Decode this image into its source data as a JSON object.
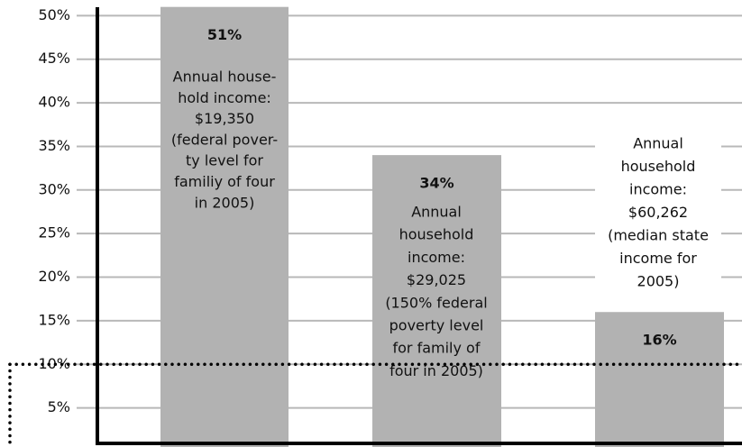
{
  "chart_data": {
    "type": "bar",
    "categories": [
      null,
      null,
      null
    ],
    "values": [
      51,
      34,
      16
    ],
    "value_labels": [
      "51%",
      "34%",
      "16%"
    ],
    "annotations": [
      [
        "Annual house-",
        "hold income:",
        "$19,350",
        "(federal pover-",
        "ty level for",
        "familiy of four",
        "in 2005)"
      ],
      [
        "Annual",
        "household",
        "income:",
        "$29,025",
        "(150% federal",
        "poverty level",
        "for family of",
        "four in 2005)"
      ],
      [
        "Annual",
        "household",
        "income:",
        "$60,262",
        "(median state",
        "income for",
        "2005)"
      ]
    ],
    "color": "#b2b2b2",
    "ylim": [
      0,
      52
    ],
    "yticks": [
      {
        "value": 5,
        "label": "5%"
      },
      {
        "value": 10,
        "label": "10%"
      },
      {
        "value": 15,
        "label": "15%"
      },
      {
        "value": 20,
        "label": "20%"
      },
      {
        "value": 25,
        "label": "25%"
      },
      {
        "value": 30,
        "label": "30%"
      },
      {
        "value": 35,
        "label": "35%"
      },
      {
        "value": 40,
        "label": "40%"
      },
      {
        "value": 45,
        "label": "45%"
      },
      {
        "value": 50,
        "label": "50%"
      }
    ],
    "reference_line": 10,
    "grid": true
  }
}
